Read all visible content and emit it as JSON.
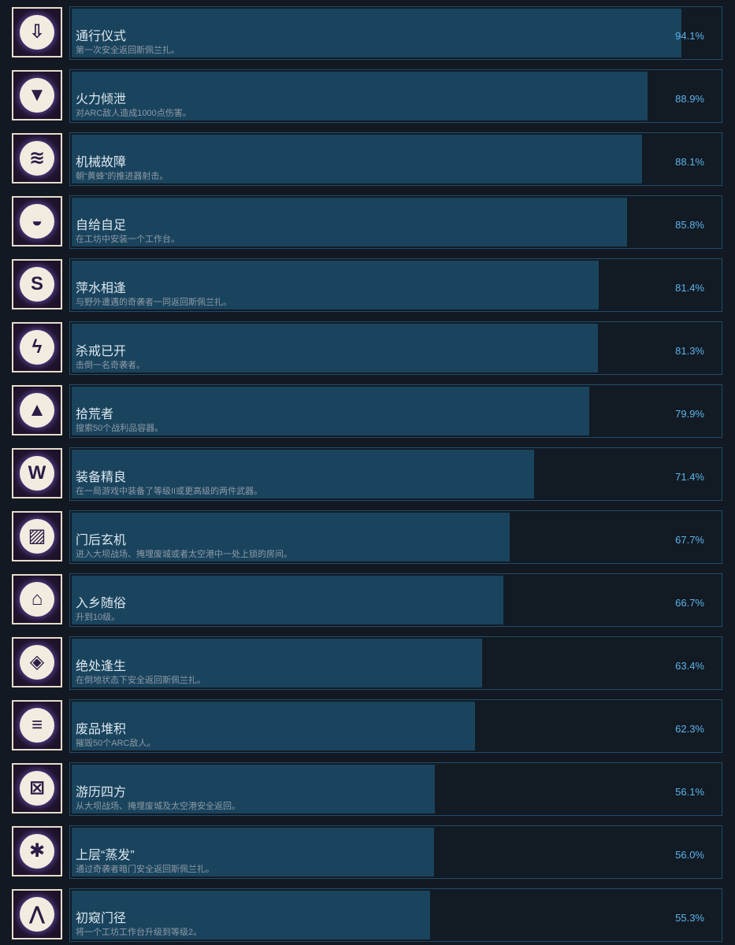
{
  "colors": {
    "background": "#131922",
    "bar": "#1a445d",
    "border": "#1f4c6b",
    "percent": "#5cb4ec",
    "title": "#dce6ef",
    "description": "#8e9aa6"
  },
  "achievements": [
    {
      "title": "通行仪式",
      "description": "第一次安全返回斯佩兰扎。",
      "percent": "94.1%",
      "value": 94.1,
      "icon": "arrow-down-icon",
      "glyph": "⇩"
    },
    {
      "title": "火力倾泄",
      "description": "对ARC敌人造成1000点伤害。",
      "percent": "88.9%",
      "value": 88.9,
      "icon": "mesh-icon",
      "glyph": "▼"
    },
    {
      "title": "机械故障",
      "description": "朝“黄蜂”的推进器射击。",
      "percent": "88.1%",
      "value": 88.1,
      "icon": "thruster-icon",
      "glyph": "≋"
    },
    {
      "title": "自给自足",
      "description": "在工坊中安装一个工作台。",
      "percent": "85.8%",
      "value": 85.8,
      "icon": "workbench-icon",
      "glyph": "◒"
    },
    {
      "title": "萍水相逢",
      "description": "与野外遭遇的奇袭者一同返回斯佩兰扎。",
      "percent": "81.4%",
      "value": 81.4,
      "icon": "s-curve-icon",
      "glyph": "S"
    },
    {
      "title": "杀戒已开",
      "description": "击倒一名奇袭者。",
      "percent": "81.3%",
      "value": 81.3,
      "icon": "knockdown-icon",
      "glyph": "ϟ"
    },
    {
      "title": "拾荒者",
      "description": "搜索50个战利品容器。",
      "percent": "79.9%",
      "value": 79.9,
      "icon": "container-icon",
      "glyph": "▲"
    },
    {
      "title": "装备精良",
      "description": "在一局游戏中装备了等级II或更高级的两件武器。",
      "percent": "71.4%",
      "value": 71.4,
      "icon": "chevrons-icon",
      "glyph": "W"
    },
    {
      "title": "门后玄机",
      "description": "进入大坝战场、掩埋废城或者太空港中一处上锁的房间。",
      "percent": "67.7%",
      "value": 67.7,
      "icon": "locked-door-icon",
      "glyph": "▨"
    },
    {
      "title": "入乡随俗",
      "description": "升到10级。",
      "percent": "66.7%",
      "value": 66.7,
      "icon": "level-up-icon",
      "glyph": "⌂"
    },
    {
      "title": "绝处逢生",
      "description": "在倒地状态下安全返回斯佩兰扎。",
      "percent": "63.4%",
      "value": 63.4,
      "icon": "revive-icon",
      "glyph": "◈"
    },
    {
      "title": "废品堆积",
      "description": "摧毁50个ARC敌人。",
      "percent": "62.3%",
      "value": 62.3,
      "icon": "scrap-icon",
      "glyph": "≡"
    },
    {
      "title": "游历四方",
      "description": "从大坝战场、掩埋废城及太空港安全返回。",
      "percent": "56.1%",
      "value": 56.1,
      "icon": "map-icon",
      "glyph": "⊠"
    },
    {
      "title": "上层“蒸发”",
      "description": "通过奇袭者暗门安全返回斯佩兰扎。",
      "percent": "56.0%",
      "value": 56.0,
      "icon": "hatch-icon",
      "glyph": "✱"
    },
    {
      "title": "初窥门径",
      "description": "将一个工坊工作台升级到等级2。",
      "percent": "55.3%",
      "value": 55.3,
      "icon": "upgrade-icon",
      "glyph": "⋀"
    }
  ]
}
